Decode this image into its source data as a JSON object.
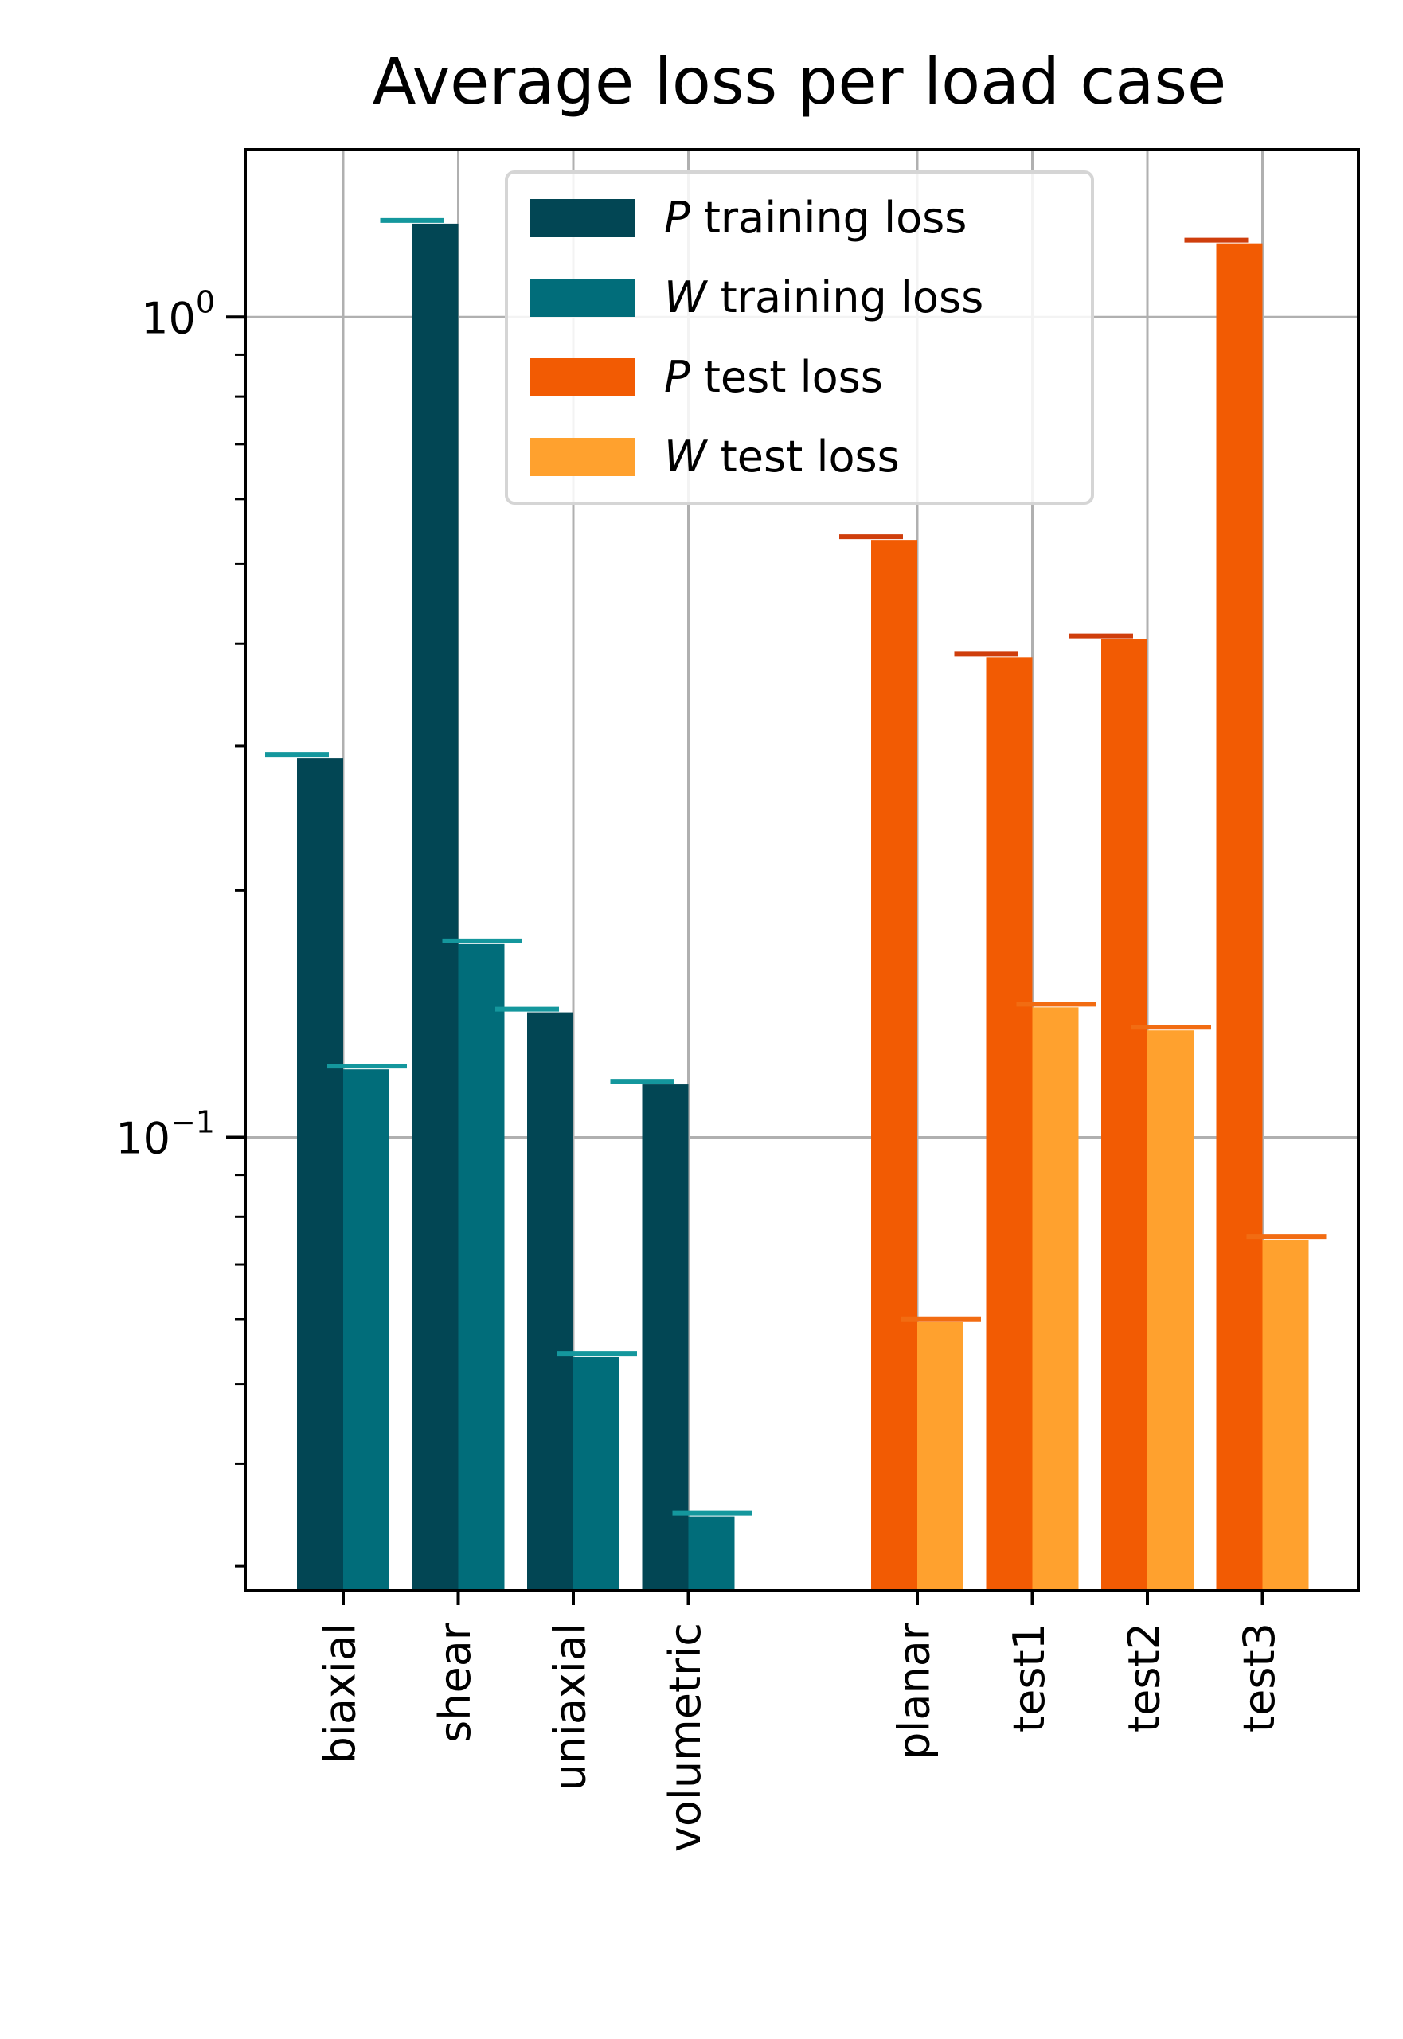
{
  "chart_data": {
    "type": "bar",
    "title": "Average loss per load case",
    "yscale": "log",
    "ylim": [
      0.028,
      1.6
    ],
    "grid": true,
    "legend_placement": "top-center",
    "yticks": [
      {
        "value": 1.0,
        "base": "10",
        "exp": "0"
      },
      {
        "value": 0.1,
        "base": "10",
        "exp": "−1"
      }
    ],
    "groups": [
      {
        "name": "training",
        "categories": [
          "biaxial",
          "shear",
          "uniaxial",
          "volumetric"
        ],
        "series": [
          {
            "key": "P",
            "values": [
              0.29,
              1.3,
              0.142,
              0.116
            ]
          },
          {
            "key": "W",
            "values": [
              0.121,
              0.172,
              0.054,
              0.0345
            ]
          }
        ]
      },
      {
        "name": "test",
        "categories": [
          "planar",
          "test1",
          "test2",
          "test3"
        ],
        "series": [
          {
            "key": "P",
            "values": [
              0.535,
              0.385,
              0.405,
              1.23
            ]
          },
          {
            "key": "W",
            "values": [
              0.0595,
              0.144,
              0.135,
              0.075
            ]
          }
        ]
      }
    ],
    "legend": [
      {
        "symbol": "P",
        "text": " training loss",
        "color": "#024654"
      },
      {
        "symbol": "W",
        "text": " training loss",
        "color": "#016d7a"
      },
      {
        "symbol": "P",
        "text": " test loss",
        "color": "#f25b03"
      },
      {
        "symbol": "W",
        "text": " test loss",
        "color": "#ffa12e"
      }
    ],
    "colors": {
      "p_train": "#024654",
      "w_train": "#016d7a",
      "p_test": "#f25b03",
      "w_test": "#ffa12e",
      "cap_train": "#14979d",
      "cap_p_test": "#cf3e0c",
      "cap_w_test": "#f26c12"
    }
  }
}
